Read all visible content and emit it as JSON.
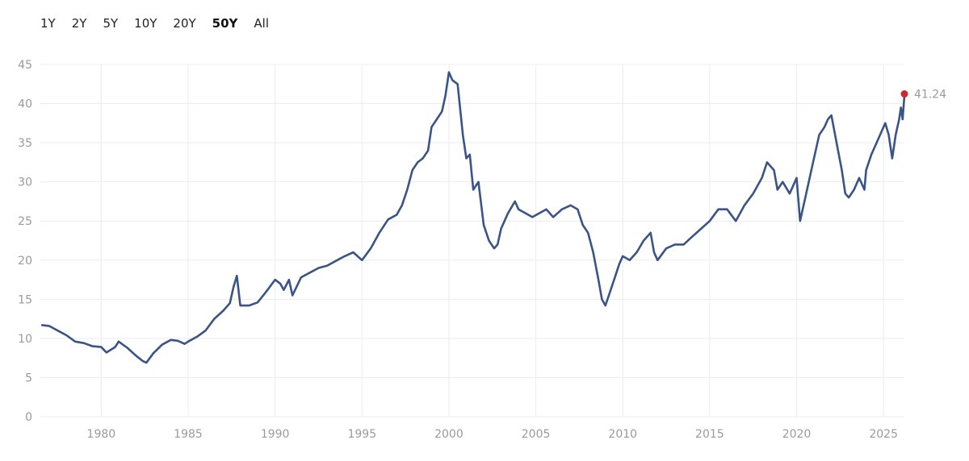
{
  "range_selector": {
    "options": [
      "1Y",
      "2Y",
      "5Y",
      "10Y",
      "20Y",
      "50Y",
      "All"
    ],
    "active": "50Y"
  },
  "colors": {
    "line": "#3a5486",
    "marker": "#d0262f",
    "grid": "#ececec",
    "tick_text": "#9a9a9a"
  },
  "chart_data": {
    "type": "line",
    "title": "",
    "xlabel": "",
    "ylabel": "",
    "xlim": [
      1976.5,
      2026.2
    ],
    "ylim": [
      0,
      45
    ],
    "y_ticks": [
      0,
      5,
      10,
      15,
      20,
      25,
      30,
      35,
      40,
      45
    ],
    "x_ticks": [
      1980,
      1985,
      1990,
      1995,
      2000,
      2005,
      2010,
      2015,
      2020,
      2025
    ],
    "grid": true,
    "series": [
      {
        "x": [
          1976.6,
          1977.0,
          1977.5,
          1978.0,
          1978.5,
          1979.0,
          1979.5,
          1980.0,
          1980.3,
          1980.8,
          1981.0,
          1981.5,
          1982.0,
          1982.4,
          1982.6,
          1983.0,
          1983.5,
          1984.0,
          1984.4,
          1984.8,
          1985.0,
          1985.5,
          1986.0,
          1986.5,
          1987.0,
          1987.4,
          1987.6,
          1987.8,
          1988.0,
          1988.5,
          1989.0,
          1989.5,
          1990.0,
          1990.3,
          1990.5,
          1990.8,
          1991.0,
          1991.5,
          1992.0,
          1992.5,
          1993.0,
          1993.5,
          1994.0,
          1994.5,
          1995.0,
          1995.5,
          1996.0,
          1996.5,
          1997.0,
          1997.3,
          1997.6,
          1997.9,
          1998.2,
          1998.5,
          1998.8,
          1999.0,
          1999.3,
          1999.6,
          1999.8,
          2000.0,
          2000.2,
          2000.5,
          2000.8,
          2001.0,
          2001.2,
          2001.4,
          2001.7,
          2002.0,
          2002.3,
          2002.6,
          2002.8,
          2003.0,
          2003.4,
          2003.8,
          2004.0,
          2004.4,
          2004.8,
          2005.2,
          2005.6,
          2006.0,
          2006.5,
          2007.0,
          2007.4,
          2007.7,
          2008.0,
          2008.3,
          2008.6,
          2008.8,
          2009.0,
          2009.2,
          2009.5,
          2009.8,
          2010.0,
          2010.4,
          2010.8,
          2011.2,
          2011.6,
          2011.8,
          2012.0,
          2012.5,
          2013.0,
          2013.5,
          2014.0,
          2014.5,
          2015.0,
          2015.5,
          2016.0,
          2016.5,
          2017.0,
          2017.5,
          2018.0,
          2018.3,
          2018.7,
          2018.9,
          2019.2,
          2019.6,
          2020.0,
          2020.2,
          2020.5,
          2020.8,
          2021.0,
          2021.3,
          2021.6,
          2021.8,
          2022.0,
          2022.3,
          2022.6,
          2022.8,
          2023.0,
          2023.3,
          2023.6,
          2023.9,
          2024.0,
          2024.3,
          2024.6,
          2024.9,
          2025.1,
          2025.3,
          2025.5,
          2025.7,
          2025.9,
          2026.0,
          2026.1,
          2026.2
        ],
        "values": [
          11.7,
          11.6,
          11.0,
          10.4,
          9.6,
          9.4,
          9.0,
          8.9,
          8.2,
          8.9,
          9.6,
          8.8,
          7.8,
          7.1,
          6.9,
          8.1,
          9.2,
          9.8,
          9.7,
          9.3,
          9.6,
          10.2,
          11.0,
          12.5,
          13.5,
          14.5,
          16.5,
          18.0,
          14.2,
          14.2,
          14.6,
          16.0,
          17.5,
          17.0,
          16.2,
          17.5,
          15.5,
          17.8,
          18.4,
          19.0,
          19.3,
          19.9,
          20.5,
          21.0,
          20.0,
          21.5,
          23.5,
          25.2,
          25.8,
          27.0,
          29.0,
          31.5,
          32.5,
          33.0,
          34.0,
          37.0,
          38.0,
          39.0,
          41.0,
          44.0,
          43.0,
          42.5,
          36.0,
          33.0,
          33.5,
          29.0,
          30.0,
          24.5,
          22.5,
          21.5,
          22.0,
          24.0,
          26.0,
          27.5,
          26.5,
          26.0,
          25.5,
          26.0,
          26.5,
          25.5,
          26.5,
          27.0,
          26.5,
          24.5,
          23.5,
          21.0,
          17.5,
          15.0,
          14.2,
          15.5,
          17.5,
          19.5,
          20.5,
          20.0,
          21.0,
          22.5,
          23.5,
          21.0,
          20.0,
          21.5,
          22.0,
          22.0,
          23.0,
          24.0,
          25.0,
          26.5,
          26.5,
          25.0,
          27.0,
          28.5,
          30.5,
          32.5,
          31.5,
          29.0,
          30.0,
          28.5,
          30.5,
          25.0,
          28.0,
          31.0,
          33.0,
          36.0,
          37.0,
          38.0,
          38.5,
          35.0,
          31.5,
          28.5,
          28.0,
          29.0,
          30.5,
          29.0,
          31.5,
          33.5,
          35.0,
          36.5,
          37.5,
          36.0,
          33.0,
          36.0,
          38.0,
          39.5,
          38.0,
          41.0
        ],
        "last_value_label": "41.24"
      }
    ]
  }
}
